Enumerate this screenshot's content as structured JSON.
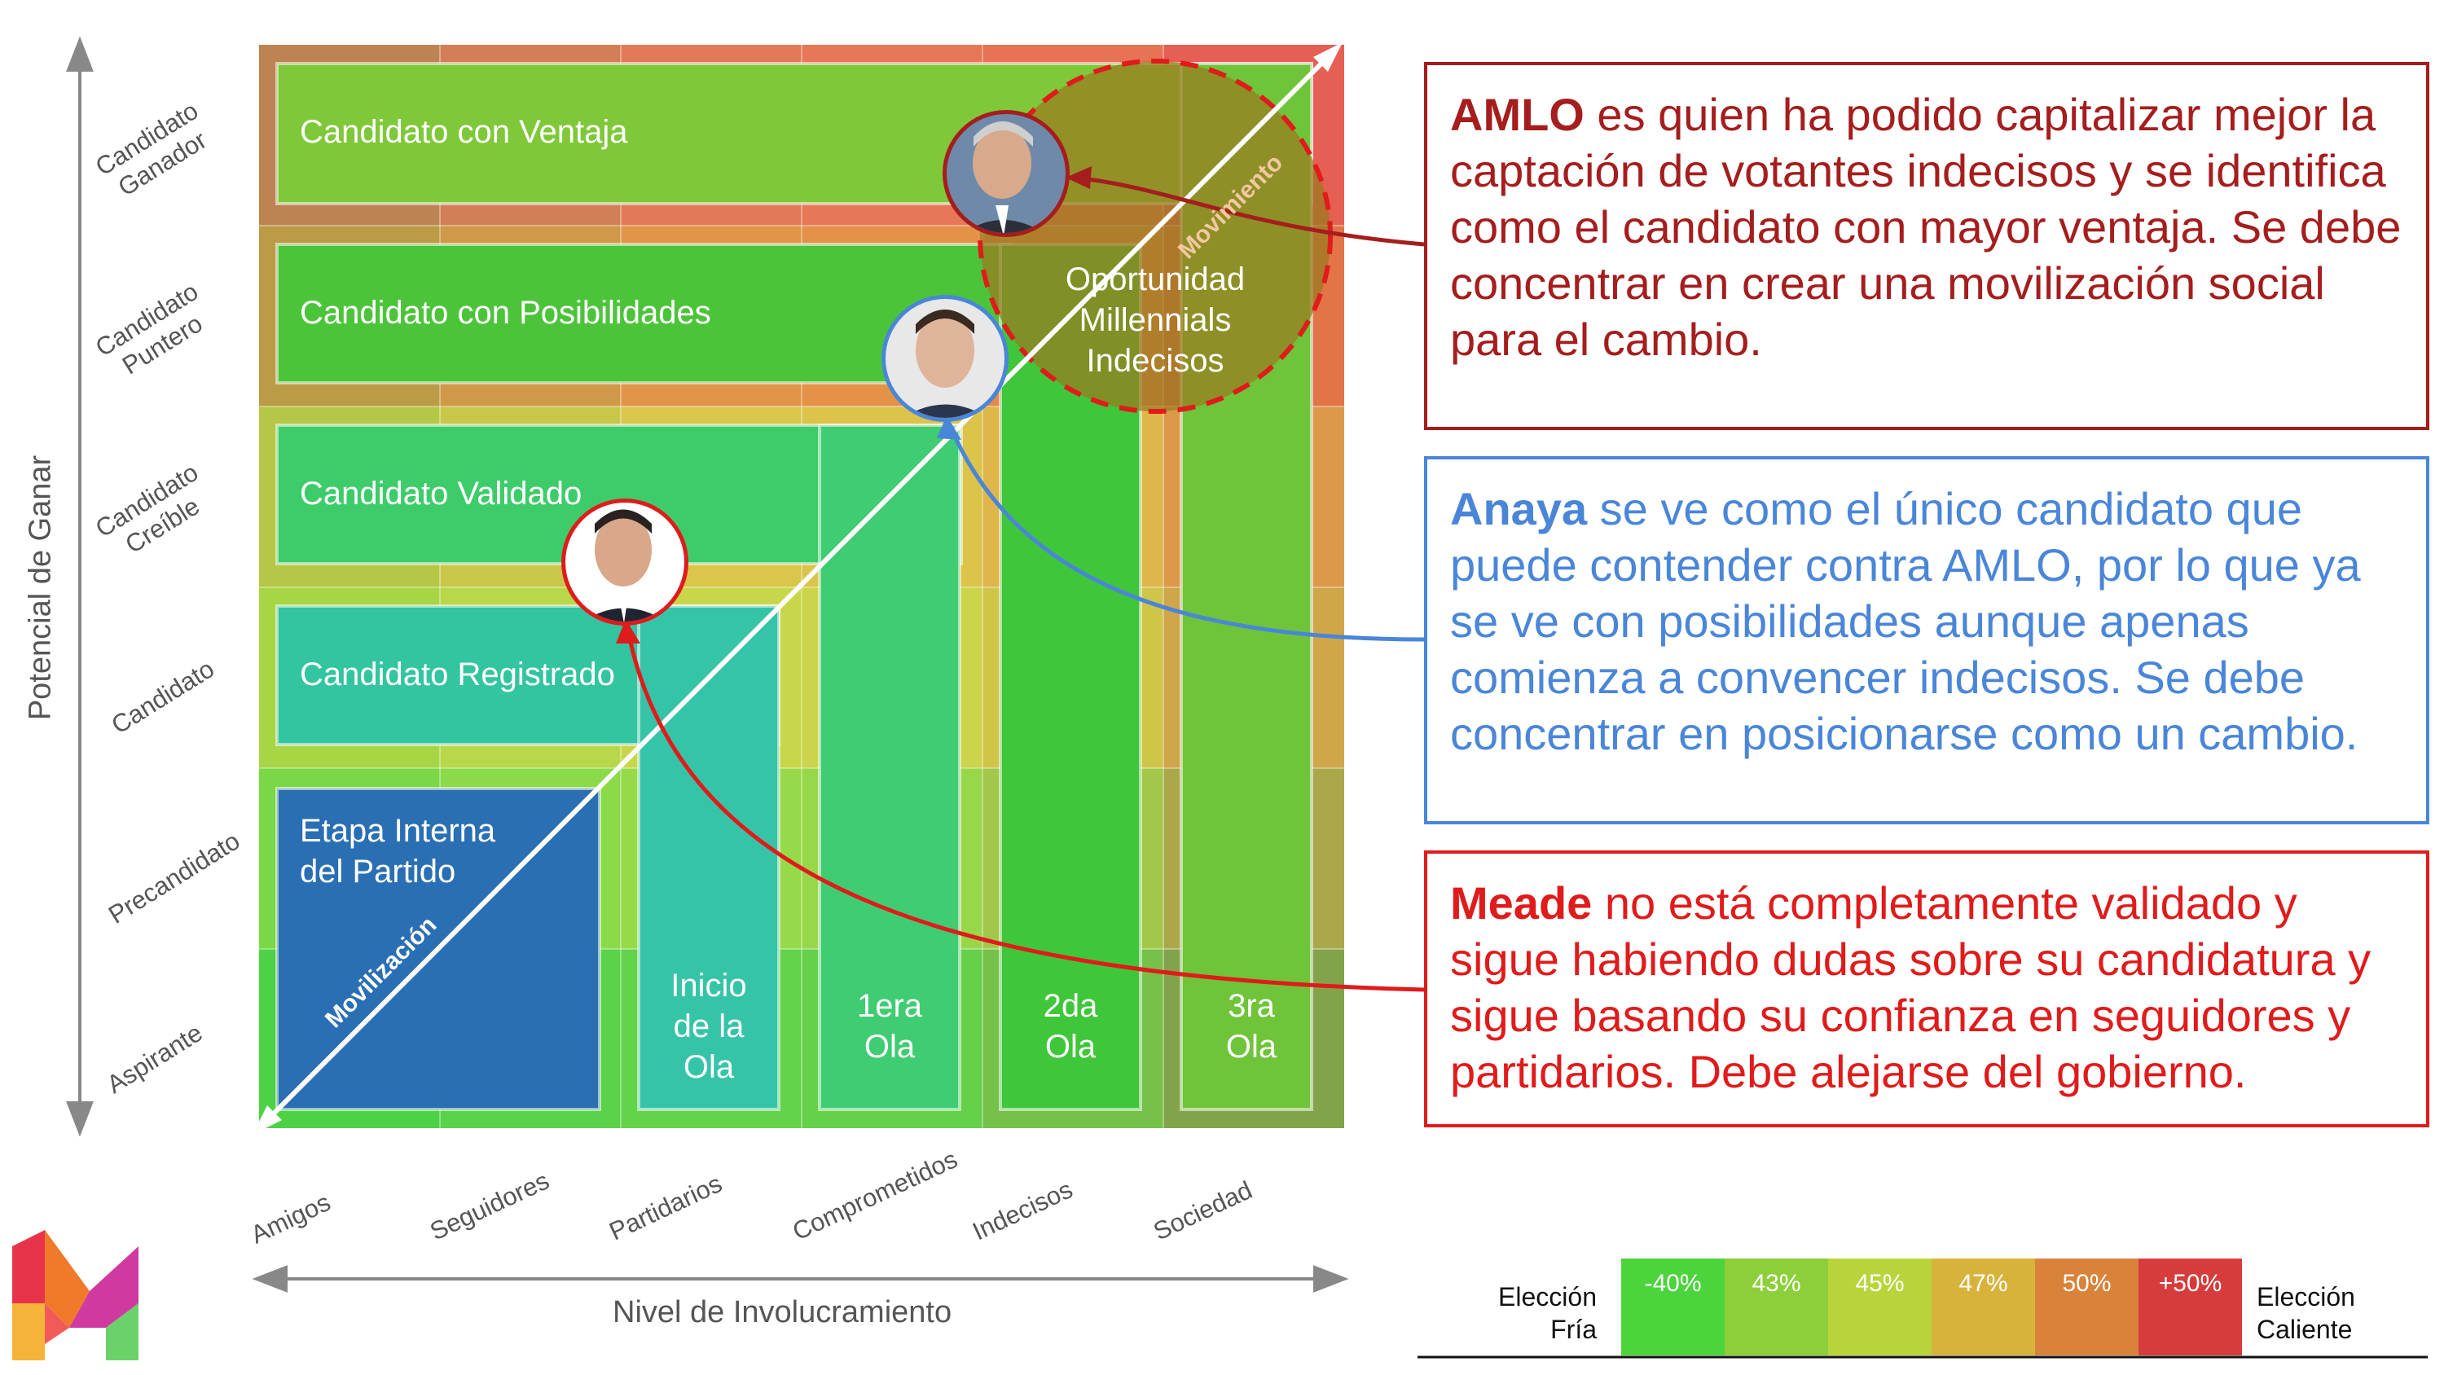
{
  "y_axis": {
    "title": "Potencial de Ganar",
    "levels": [
      "Candidato\nGanador",
      "Candidato\nPuntero",
      "Candidato\nCreíble",
      "Candidato",
      "Precandidato",
      "Aspirante"
    ]
  },
  "x_axis": {
    "title": "Nivel de Involucramiento",
    "levels": [
      "Amigos",
      "Seguidores",
      "Partidarios",
      "Comprometidos",
      "Indecisos",
      "Sociedad"
    ]
  },
  "boxes": {
    "ventaja": "Candidato con Ventaja",
    "posibilidades": "Candidato con Posibilidades",
    "validado": "Candidato Validado",
    "registrado": "Candidato Registrado",
    "etapa": "Etapa Interna\ndel Partido"
  },
  "columns": [
    "Inicio\nde la\nOla",
    "1era\nOla",
    "2da\nOla",
    "3ra\nOla"
  ],
  "diagonal": {
    "start_label": "Movilización",
    "end_label": "Movimiento"
  },
  "opportunity": "Oportunidad\nMillennials\nIndecisos",
  "callouts": {
    "amlo": {
      "name": "AMLO",
      "text": " es quien ha podido capitalizar mejor la captación de votantes indecisos y se identifica como el candidato con mayor ventaja. Se debe concentrar en crear una movilización social para el cambio.",
      "color": "#a51d1d"
    },
    "anaya": {
      "name": "Anaya",
      "text": " se ve como el único candidato que puede contender contra AMLO, por lo que ya se ve con posibilidades aunque apenas comienza a convencer indecisos. Se debe concentrar en posicionarse como un cambio.",
      "color": "#4a86d8"
    },
    "meade": {
      "name": "Meade",
      "text": " no está completamente validado y sigue habiendo dudas sobre su candidatura y sigue basando su confianza en seguidores y partidarios. Debe alejarse del gobierno.",
      "color": "#e01b1b"
    }
  },
  "thermometer": {
    "left_label": "Elección\nFría",
    "right_label": "Elección\nCaliente",
    "cells": [
      "-40%",
      "43%",
      "45%",
      "47%",
      "50%",
      "+50%"
    ],
    "colors": [
      "#4cd43c",
      "#8ccf3a",
      "#b9d43b",
      "#d8b33c",
      "#d9823a",
      "#d63c3c"
    ],
    "marker_index": 4
  },
  "colors": {
    "row_ganador": "#e85c5c",
    "row_puntero": "#e48a48",
    "row_creible": "#dcc44a",
    "row_candidato": "#c8d84a",
    "row_pre": "#7ed84a",
    "row_asp": "#4cd24a",
    "amlo": "#a51d1d",
    "anaya": "#4a86d8",
    "meade": "#e01b1b"
  }
}
